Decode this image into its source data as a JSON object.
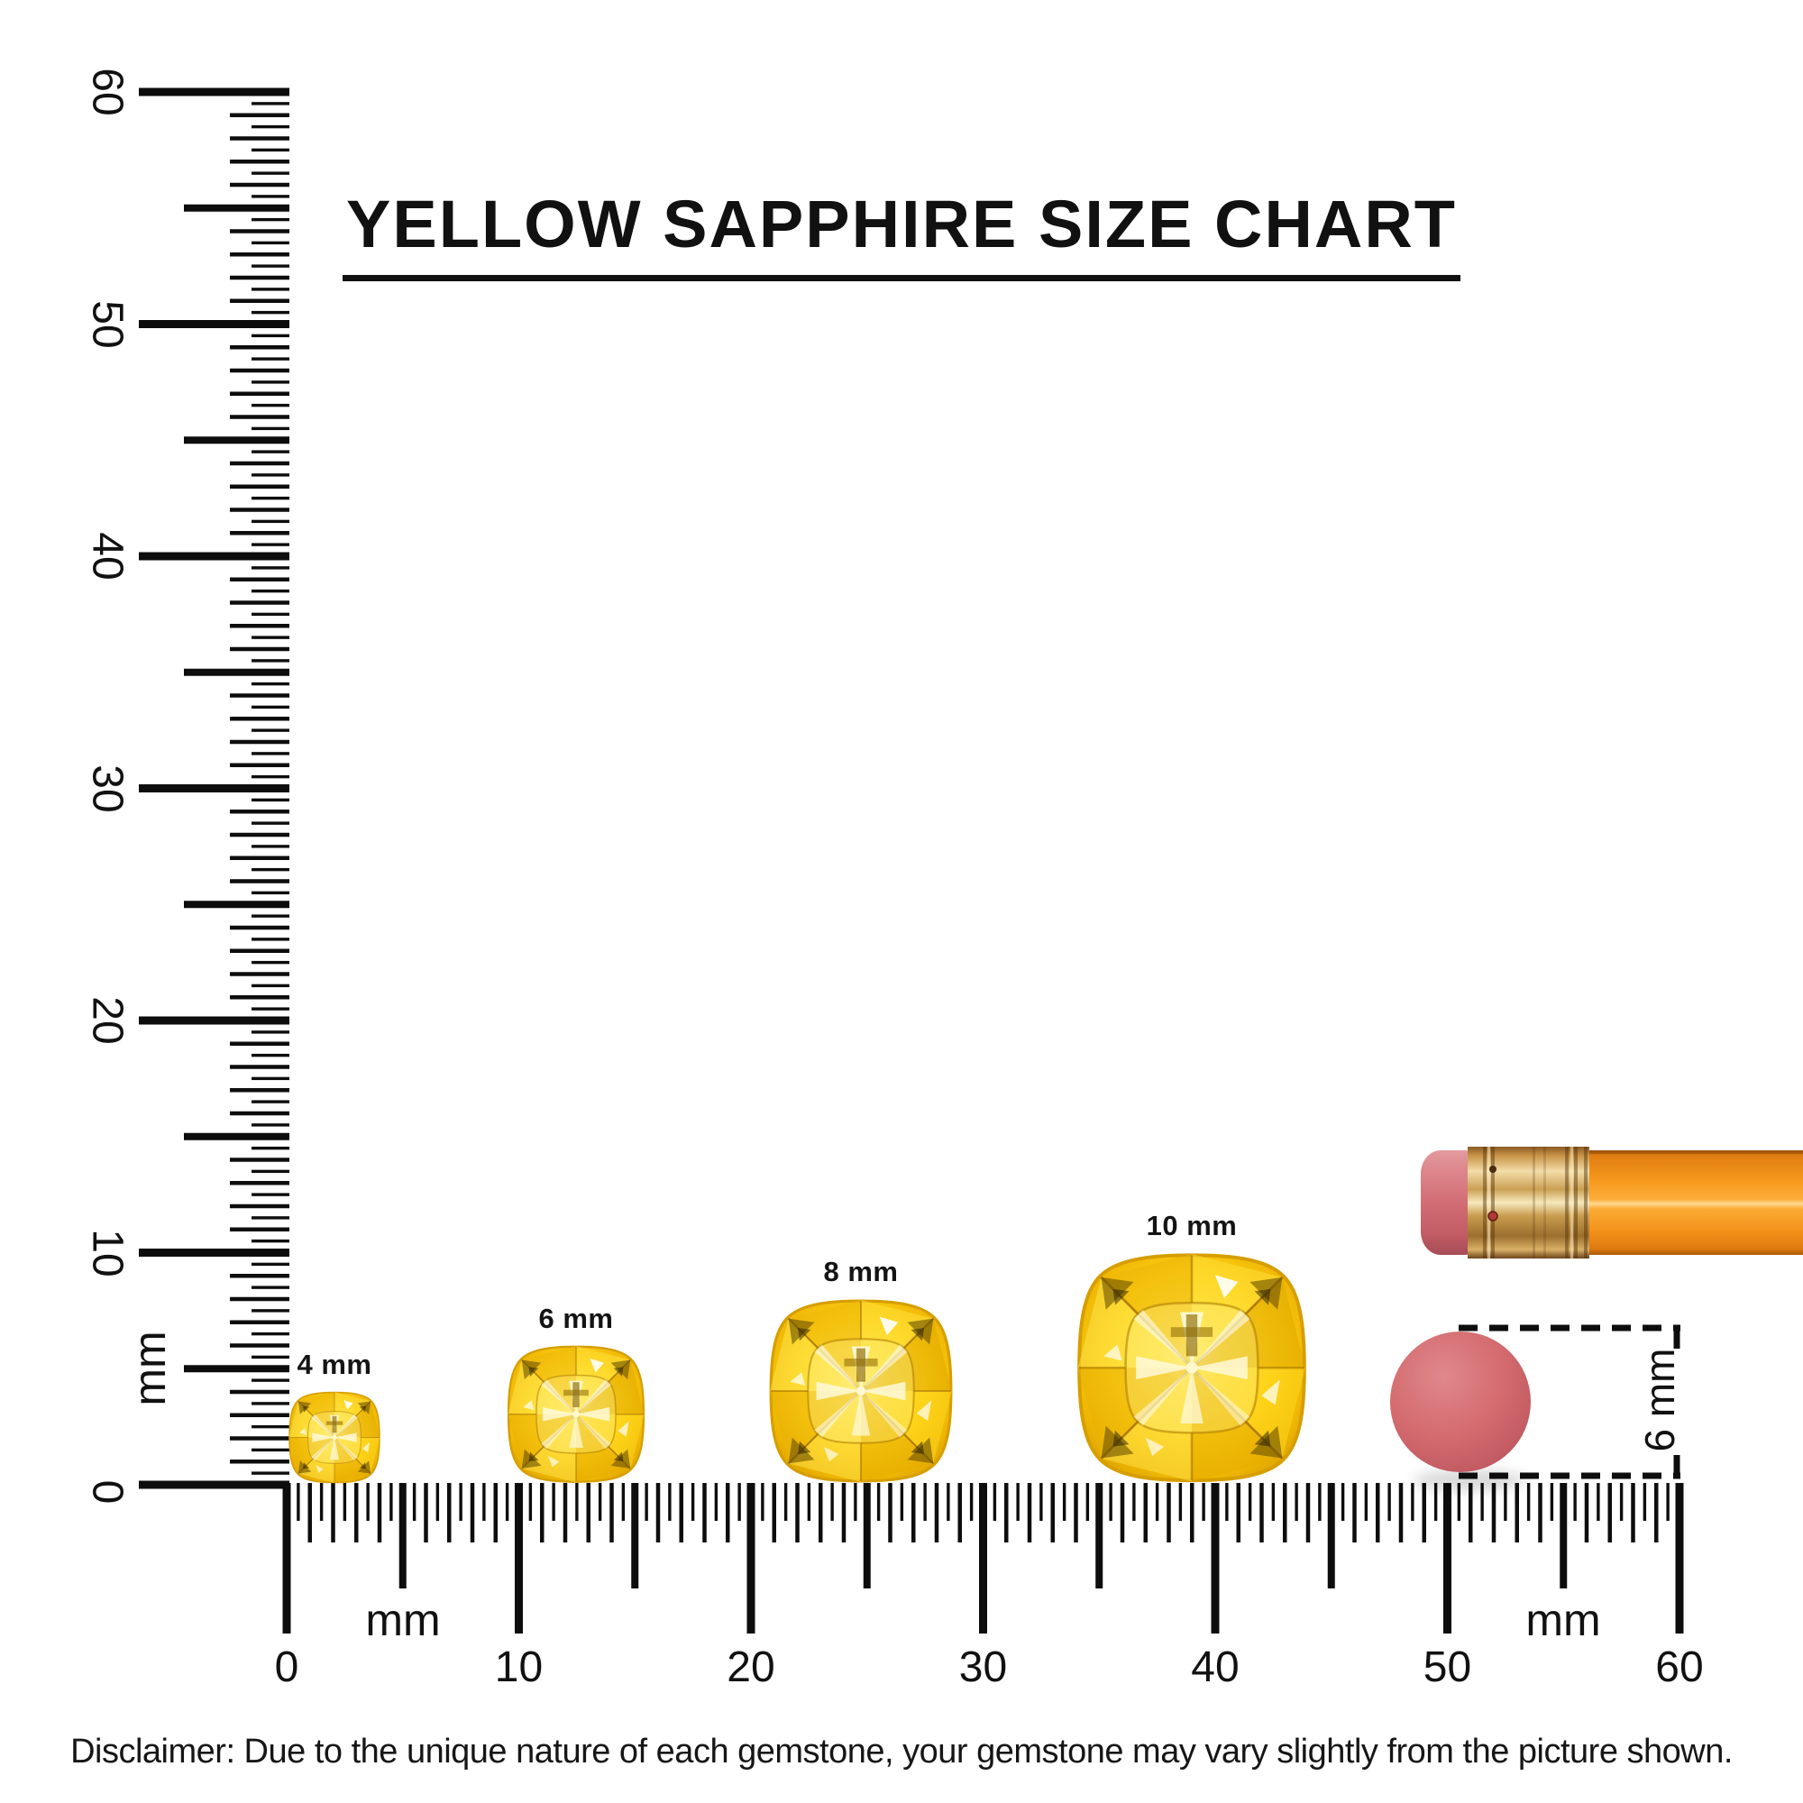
{
  "title": {
    "text": "YELLOW SAPPHIRE SIZE CHART"
  },
  "rulers": {
    "unit": "mm",
    "vertical": {
      "tick_labels": [
        "0",
        "10",
        "20",
        "30",
        "40",
        "50",
        "60"
      ]
    },
    "horizontal": {
      "tick_labels": [
        "0",
        "10",
        "20",
        "30",
        "40",
        "50",
        "60"
      ]
    }
  },
  "gems": [
    {
      "label": "4 mm",
      "size_mm": 4
    },
    {
      "label": "6 mm",
      "size_mm": 6
    },
    {
      "label": "8 mm",
      "size_mm": 8
    },
    {
      "label": "10 mm",
      "size_mm": 10
    }
  ],
  "eraser_dimension": {
    "label": "6 mm"
  },
  "disclaimer": {
    "text": "Disclaimer: Due to the unique nature of each gemstone, your gemstone may vary slightly from the picture shown."
  },
  "colors": {
    "ink": "#111111",
    "gem_core": "#ffe24a",
    "gem_mid": "#fdd017",
    "gem_edge": "#d99f00",
    "pencil_body": "#f8991d",
    "pencil_ferrule": "#d8a85a",
    "pencil_eraser": "#d4696f",
    "eraser_circle": "#d46a6e"
  }
}
